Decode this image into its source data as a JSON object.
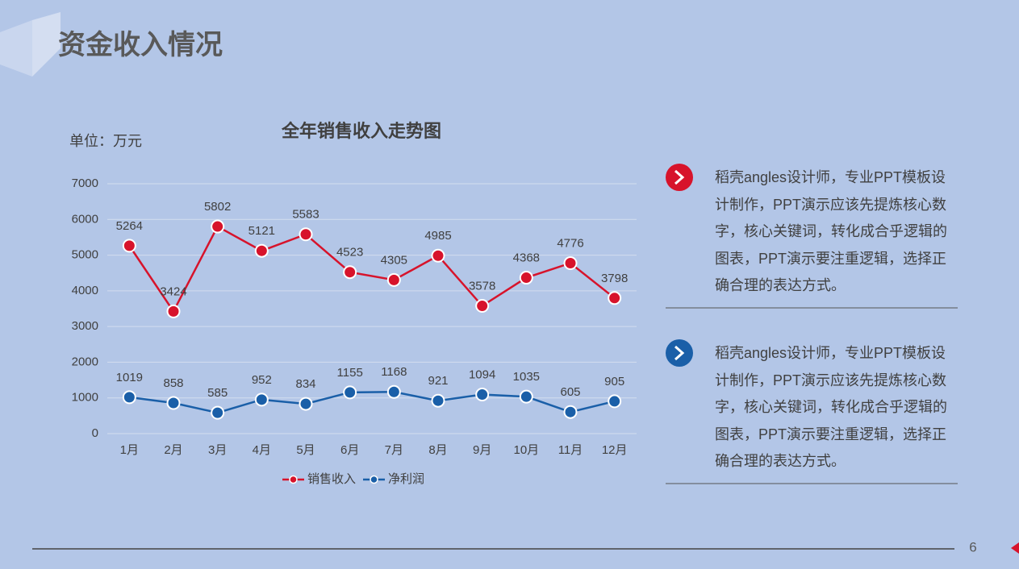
{
  "page_title": "资金收入情况",
  "page_number": "6",
  "notes": [
    {
      "text": "稻壳angles设计师，专业PPT模板设计制作，PPT演示应该先提炼核心数字，核心关键词，转化成合乎逻辑的图表，PPT演示要注重逻辑，选择正确合理的表达方式。"
    },
    {
      "text": "稻壳angles设计师，专业PPT模板设计制作，PPT演示应该先提炼核心数字，核心关键词，转化成合乎逻辑的图表，PPT演示要注重逻辑，选择正确合理的表达方式。"
    }
  ],
  "chart_data": {
    "type": "line",
    "title": "全年销售收入走势图",
    "unit_label": "单位：万元",
    "categories": [
      "1月",
      "2月",
      "3月",
      "4月",
      "5月",
      "6月",
      "7月",
      "8月",
      "9月",
      "10月",
      "11月",
      "12月"
    ],
    "series": [
      {
        "name": "销售收入",
        "color": "#d7132b",
        "values": [
          5264,
          3424,
          5802,
          5121,
          5583,
          4523,
          4305,
          4985,
          3578,
          4368,
          4776,
          3798
        ]
      },
      {
        "name": "净利润",
        "color": "#1a5fa8",
        "values": [
          1019,
          858,
          585,
          952,
          834,
          1155,
          1168,
          921,
          1094,
          1035,
          605,
          905
        ]
      }
    ],
    "ylim": [
      0,
      7000
    ],
    "yticks": [
      0,
      1000,
      2000,
      3000,
      4000,
      5000,
      6000,
      7000
    ],
    "grid": true,
    "legend": "bottom"
  }
}
